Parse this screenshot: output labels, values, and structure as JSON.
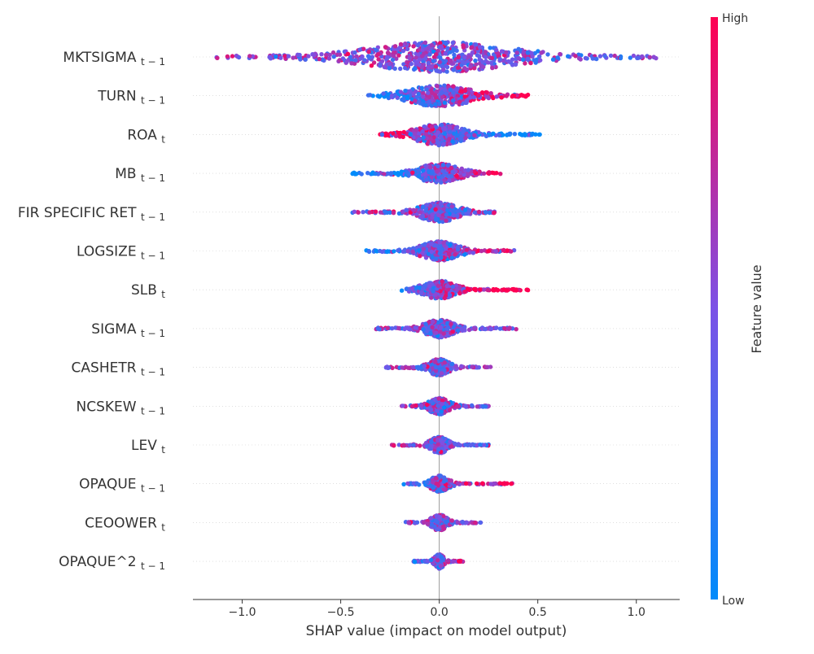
{
  "chart_data": {
    "type": "scatter",
    "subtype": "shap-beeswarm",
    "title": "",
    "xlabel": "SHAP value (impact on model output)",
    "xlim": [
      -1.25,
      1.22
    ],
    "xticks": [
      -1.0,
      -0.5,
      0.0,
      0.5,
      1.0
    ],
    "xtick_labels": [
      "−1.0",
      "−0.5",
      "0.0",
      "0.5",
      "1.0"
    ],
    "colorbar": {
      "label": "Feature value",
      "high_label": "High",
      "low_label": "Low",
      "low_color": "#008bfb",
      "mid_color": "#7c52e6",
      "high_color": "#ff0052"
    },
    "features": [
      {
        "name": "MKTSIGMA",
        "sub": "t − 1",
        "min": -1.13,
        "max": 1.1,
        "spread": 0.33,
        "density": 1.0,
        "corr": -0.1
      },
      {
        "name": "TURN",
        "sub": "t − 1",
        "min": -0.36,
        "max": 0.45,
        "spread": 0.14,
        "density": 0.55,
        "corr": 0.8
      },
      {
        "name": "ROA",
        "sub": "t",
        "min": -0.3,
        "max": 0.51,
        "spread": 0.1,
        "density": 0.55,
        "corr": -0.8
      },
      {
        "name": "MB",
        "sub": "t − 1",
        "min": -0.44,
        "max": 0.31,
        "spread": 0.09,
        "density": 0.45,
        "corr": 0.8
      },
      {
        "name": "FIR SPECIFIC RET",
        "sub": "t − 1",
        "min": -0.44,
        "max": 0.28,
        "spread": 0.08,
        "density": 0.45,
        "corr": 0.0
      },
      {
        "name": "LOGSIZE",
        "sub": "t − 1",
        "min": -0.37,
        "max": 0.38,
        "spread": 0.08,
        "density": 0.45,
        "corr": 0.7
      },
      {
        "name": "SLB",
        "sub": "t",
        "min": -0.19,
        "max": 0.45,
        "spread": 0.07,
        "density": 0.4,
        "corr": 0.9
      },
      {
        "name": "SIGMA",
        "sub": "t − 1",
        "min": -0.32,
        "max": 0.39,
        "spread": 0.06,
        "density": 0.38,
        "corr": 0.0
      },
      {
        "name": "CASHETR",
        "sub": "t − 1",
        "min": -0.27,
        "max": 0.26,
        "spread": 0.04,
        "density": 0.32,
        "corr": 0.0
      },
      {
        "name": "NCSKEW",
        "sub": "t − 1",
        "min": -0.19,
        "max": 0.25,
        "spread": 0.04,
        "density": 0.3,
        "corr": 0.0
      },
      {
        "name": "LEV",
        "sub": "t",
        "min": -0.24,
        "max": 0.25,
        "spread": 0.035,
        "density": 0.3,
        "corr": -0.3
      },
      {
        "name": "OPAQUE",
        "sub": "t − 1",
        "min": -0.18,
        "max": 0.37,
        "spread": 0.035,
        "density": 0.3,
        "corr": 0.6
      },
      {
        "name": "CEOOWER",
        "sub": "t",
        "min": -0.17,
        "max": 0.21,
        "spread": 0.03,
        "density": 0.28,
        "corr": 0.0
      },
      {
        "name": "OPAQUE^2",
        "sub": "t − 1",
        "min": -0.13,
        "max": 0.12,
        "spread": 0.015,
        "density": 0.2,
        "corr": 0.4
      }
    ]
  }
}
